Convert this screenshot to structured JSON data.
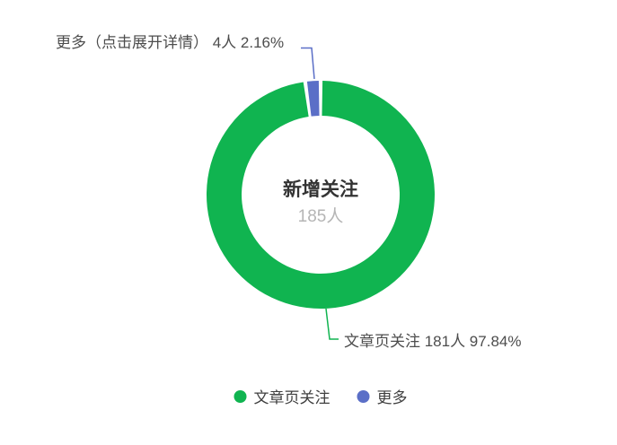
{
  "chart_data": {
    "type": "pie",
    "subtype": "donut",
    "title": "新增关注",
    "center_text": {
      "title": "新增关注",
      "value_label": "185人",
      "total_value": 185,
      "unit": "人"
    },
    "slices": [
      {
        "name": "文章页关注",
        "value": 181,
        "percent": 97.84,
        "color": "#10B450",
        "callout_label": "文章页关注 181人 97.84%"
      },
      {
        "name": "更多",
        "value": 4,
        "percent": 2.16,
        "color": "#5B6FC7",
        "callout_label": "更多（点击展开详情） 4人 2.16%"
      }
    ],
    "legend": {
      "position": "bottom",
      "items": [
        "文章页关注",
        "更多"
      ]
    },
    "start_angle_deg": 0,
    "direction": "clockwise",
    "background": "#ffffff"
  }
}
